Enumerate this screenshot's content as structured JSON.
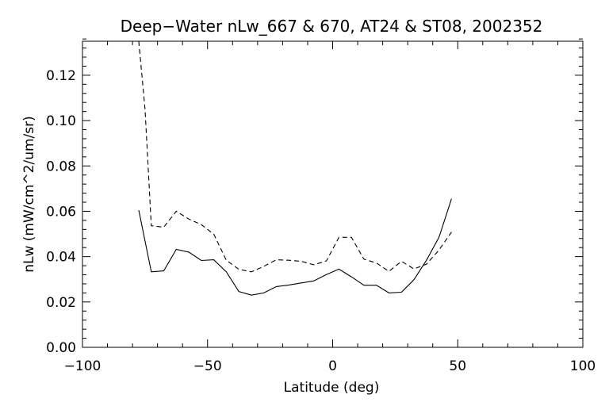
{
  "chart_data": {
    "type": "line",
    "title": "Deep−Water nLw_667 & 670, AT24 & ST08, 2002352",
    "xlabel": "Latitude (deg)",
    "ylabel": "nLw (mW/cm^2/um/sr)",
    "xlim": [
      -100,
      100
    ],
    "ylim": [
      0.0,
      0.135
    ],
    "x_ticks": [
      -100,
      -50,
      0,
      50,
      100
    ],
    "x_tick_labels": [
      "−100",
      "−50",
      "0",
      "50",
      "100"
    ],
    "y_ticks": [
      0.0,
      0.02,
      0.04,
      0.06,
      0.08,
      0.1,
      0.12
    ],
    "y_tick_labels": [
      "0.00",
      "0.02",
      "0.04",
      "0.06",
      "0.08",
      "0.10",
      "0.12"
    ],
    "grid": false,
    "series": [
      {
        "style": "solid",
        "color": "#000000",
        "x": [
          -77.5,
          -72.5,
          -67.5,
          -62.5,
          -57.5,
          -52.5,
          -47.5,
          -42.5,
          -37.5,
          -32.5,
          -27.5,
          -22.5,
          -17.5,
          -12.5,
          -7.5,
          -2.5,
          2.5,
          7.5,
          12.5,
          17.5,
          22.5,
          27.5,
          32.5,
          37.5,
          42.5,
          47.5
        ],
        "y": [
          0.0605,
          0.0333,
          0.0337,
          0.0432,
          0.042,
          0.0383,
          0.0386,
          0.0333,
          0.0246,
          0.023,
          0.024,
          0.0268,
          0.0275,
          0.0284,
          0.0293,
          0.0321,
          0.0345,
          0.0311,
          0.0274,
          0.0274,
          0.024,
          0.0243,
          0.0298,
          0.0384,
          0.0485,
          0.0655
        ]
      },
      {
        "style": "dashed",
        "color": "#000000",
        "x": [
          -77.5,
          -75,
          -72.5,
          -67.5,
          -62.5,
          -57.5,
          -52.5,
          -47.5,
          -42.5,
          -37.5,
          -32.5,
          -27.5,
          -22.5,
          -17.5,
          -12.5,
          -7.5,
          -2.5,
          2.5,
          7.5,
          12.5,
          17.5,
          22.5,
          27.5,
          32.5,
          37.5,
          42.5,
          47.5
        ],
        "y": [
          0.135,
          0.105,
          0.0536,
          0.053,
          0.06,
          0.0566,
          0.0541,
          0.0499,
          0.0384,
          0.0344,
          0.0333,
          0.0357,
          0.0386,
          0.0384,
          0.0379,
          0.0364,
          0.0381,
          0.0485,
          0.0485,
          0.0389,
          0.0372,
          0.0335,
          0.0379,
          0.0346,
          0.0367,
          0.0429,
          0.0508
        ]
      }
    ]
  }
}
